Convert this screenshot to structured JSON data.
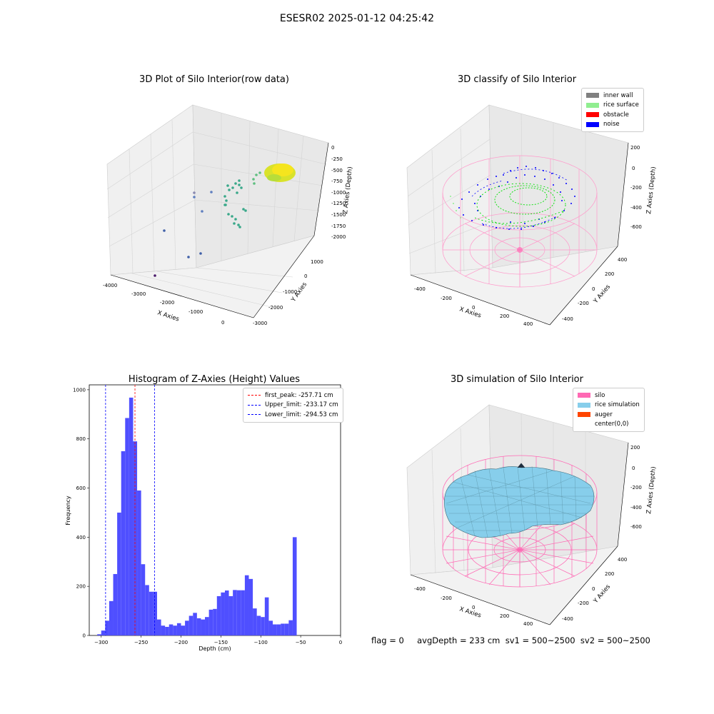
{
  "suptitle": "ESESR02 2025-01-12 04:25:42",
  "status_line": "flag = 0     avgDepth = 233 cm  sv1 = 500~2500  sv2 = 500~2500",
  "colors": {
    "hist": "#4f4fff",
    "peak_line": "#ff0000",
    "limit_line": "#0000ff",
    "inner_wall": "#808080",
    "rice_surface": "#90ee90",
    "obstacle": "#ff0000",
    "noise": "#0000ff",
    "silo": "#ff69b4",
    "rice_simulation": "#87ceeb",
    "auger": "#ff4500"
  },
  "chart_data": [
    {
      "type": "scatter",
      "projection": "3d",
      "title": "3D Plot of Silo Interior(row data)",
      "xlabel": "X Axies",
      "ylabel": "Y Axies",
      "zlabel": "Z Axies (Depth)",
      "xticks": [
        -4000,
        -3000,
        -2000,
        -1000,
        0
      ],
      "yticks": [
        -3000,
        -2000,
        -1000,
        0,
        1000
      ],
      "zticks": [
        0,
        -250,
        -500,
        -750,
        -1000,
        -1250,
        -1500,
        -1750,
        -2000
      ]
    },
    {
      "type": "scatter",
      "projection": "3d",
      "title": "3D classify of Silo Interior",
      "xlabel": "X Axies",
      "ylabel": "Y Axies",
      "zlabel": "Z Axies (Depth)",
      "xticks": [
        -400,
        -200,
        0,
        200,
        400
      ],
      "yticks": [
        -400,
        -200,
        0,
        200,
        400
      ],
      "zticks": [
        200,
        0,
        -200,
        -400,
        -600
      ],
      "legend": [
        "inner wall",
        "rice surface",
        "obstacle",
        "noise"
      ],
      "legend_position": "top-right"
    },
    {
      "type": "bar",
      "title": "Histogram of Z-Axies (Height) Values",
      "xlabel": "Depth (cm)",
      "ylabel": "Frequency",
      "xlim": [
        -315,
        0
      ],
      "ylim": [
        0,
        1020
      ],
      "xticks": [
        -300,
        -250,
        -200,
        -150,
        -100,
        -50,
        0
      ],
      "yticks": [
        0,
        200,
        400,
        600,
        800,
        1000
      ],
      "bin_width": 5,
      "bins": [
        {
          "x": -305,
          "y": 5
        },
        {
          "x": -300,
          "y": 20
        },
        {
          "x": -295,
          "y": 60
        },
        {
          "x": -290,
          "y": 140
        },
        {
          "x": -285,
          "y": 250
        },
        {
          "x": -280,
          "y": 500
        },
        {
          "x": -275,
          "y": 750
        },
        {
          "x": -270,
          "y": 885
        },
        {
          "x": -265,
          "y": 968
        },
        {
          "x": -260,
          "y": 790
        },
        {
          "x": -255,
          "y": 590
        },
        {
          "x": -250,
          "y": 290
        },
        {
          "x": -245,
          "y": 205
        },
        {
          "x": -240,
          "y": 178
        },
        {
          "x": -235,
          "y": 178
        },
        {
          "x": -230,
          "y": 65
        },
        {
          "x": -225,
          "y": 40
        },
        {
          "x": -220,
          "y": 35
        },
        {
          "x": -215,
          "y": 45
        },
        {
          "x": -210,
          "y": 40
        },
        {
          "x": -205,
          "y": 50
        },
        {
          "x": -200,
          "y": 40
        },
        {
          "x": -195,
          "y": 60
        },
        {
          "x": -190,
          "y": 80
        },
        {
          "x": -185,
          "y": 92
        },
        {
          "x": -180,
          "y": 70
        },
        {
          "x": -175,
          "y": 65
        },
        {
          "x": -170,
          "y": 75
        },
        {
          "x": -165,
          "y": 105
        },
        {
          "x": -160,
          "y": 108
        },
        {
          "x": -155,
          "y": 160
        },
        {
          "x": -150,
          "y": 175
        },
        {
          "x": -145,
          "y": 183
        },
        {
          "x": -140,
          "y": 160
        },
        {
          "x": -135,
          "y": 185
        },
        {
          "x": -130,
          "y": 184
        },
        {
          "x": -125,
          "y": 184
        },
        {
          "x": -120,
          "y": 245
        },
        {
          "x": -115,
          "y": 230
        },
        {
          "x": -110,
          "y": 110
        },
        {
          "x": -105,
          "y": 80
        },
        {
          "x": -100,
          "y": 75
        },
        {
          "x": -95,
          "y": 155
        },
        {
          "x": -90,
          "y": 60
        },
        {
          "x": -85,
          "y": 45
        },
        {
          "x": -80,
          "y": 45
        },
        {
          "x": -75,
          "y": 48
        },
        {
          "x": -70,
          "y": 48
        },
        {
          "x": -65,
          "y": 62
        },
        {
          "x": -60,
          "y": 400
        }
      ],
      "vlines": [
        {
          "x": -257.71,
          "kind": "peak",
          "label": "first_peak: -257.71 cm"
        },
        {
          "x": -233.17,
          "kind": "limit",
          "label": "Upper_limit: -233.17 cm"
        },
        {
          "x": -294.53,
          "kind": "limit",
          "label": "Lower_limit: -294.53 cm"
        }
      ],
      "legend_position": "top-right"
    },
    {
      "type": "surface",
      "projection": "3d",
      "title": "3D simulation of Silo Interior",
      "xlabel": "X Axies",
      "ylabel": "Y Axies",
      "zlabel": "Z Axies (Depth)",
      "xticks": [
        -400,
        -200,
        0,
        200,
        400
      ],
      "yticks": [
        -400,
        -200,
        0,
        200,
        400
      ],
      "zticks": [
        200,
        0,
        -200,
        -400,
        -600
      ],
      "legend": [
        "silo",
        "rice simulation",
        "auger",
        "center(0,0)"
      ],
      "legend_position": "top-right"
    }
  ]
}
